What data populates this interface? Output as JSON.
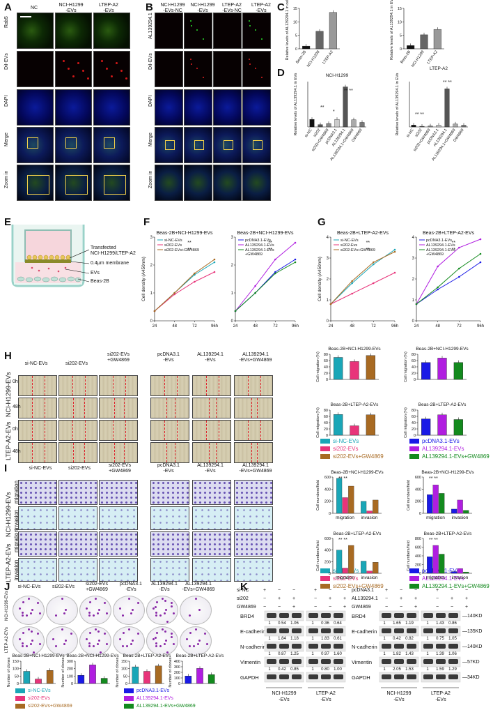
{
  "panels": {
    "A": "A",
    "B": "B",
    "C": "C",
    "D": "D",
    "E": "E",
    "F": "F",
    "G": "G",
    "H": "H",
    "I": "I",
    "J": "J",
    "K": "K"
  },
  "A": {
    "cols": [
      "NC",
      "NCI-H1299\n-EVs",
      "LTEP-A2\n-EVs"
    ],
    "rows": [
      "Rab5",
      "DiI-EVs",
      "DAPI",
      "Merge",
      "Zoom in"
    ]
  },
  "B": {
    "cols": [
      "NCI-H1299\n-EVs-NC",
      "NCI-H1299\n-EVs",
      "LTEP-A2\n-EVs-NC",
      "LTEP-A2\n-EVs"
    ],
    "rows": [
      "AL139294.1",
      "DiI-EVs",
      "DAPI",
      "Merge",
      "Zoom in"
    ]
  },
  "C": {
    "left": {
      "ylabel": "Relative levels of AL139294.1 in cells",
      "yticks": [
        "0",
        "5",
        "10",
        "15"
      ],
      "categories": [
        "Beas-2B",
        "NCI-H1299",
        "LTEP-A2"
      ]
    },
    "right": {
      "ylabel": "Relative levels of AL139294.1 in EVs",
      "yticks": [
        "0",
        "5",
        "10",
        "15"
      ],
      "categories": [
        "Beas-2B",
        "NCI-H1299",
        "LTEP-A2"
      ]
    }
  },
  "D": {
    "left": {
      "title": "NCI-H1299",
      "ylabel": "Relative levels of AL139294.1 in EVs",
      "yticks": [
        "0.0",
        "0.5",
        "1.0",
        "1.5",
        "4",
        "6"
      ],
      "categories": [
        "si-NC",
        "si202",
        "si202+GW4869",
        "pcDNA3.1",
        "AL139294.1",
        "AL139294.1+GW4869",
        "GW4869"
      ]
    },
    "right": {
      "title": "LTEP-A2",
      "ylabel": "Relative levels of AL139294.1 in EVs",
      "yticks": [
        "0.0",
        "0.5",
        "1.0",
        "1.5",
        "2",
        "20",
        "30"
      ],
      "categories": [
        "si-NC",
        "si202",
        "si202+GW4869",
        "pcDNA3.1",
        "AL139294.1",
        "AL139294.1+GW4869",
        "GW4869"
      ]
    }
  },
  "E": {
    "labels": [
      "Transfected\nNCI-H1299/LTEP-A2",
      "0.4μm membrane",
      "EVs",
      "Beas-2B"
    ]
  },
  "F": {
    "left": {
      "title": "Beas-2B+NCI-H1299-EVs",
      "ylabel": "Cell density (A450nm)",
      "yticks": [
        "0",
        "1",
        "2",
        "3"
      ],
      "xticks": [
        "24",
        "48",
        "72",
        "96h"
      ],
      "legend": [
        "si-NC-EVs",
        "si202-EVs",
        "si202-EVs+GW4869"
      ],
      "sig": [
        "**",
        "**"
      ]
    },
    "right": {
      "title": "Beas-2B+NCI-H1299-EVs",
      "yticks": [
        "0",
        "1",
        "2",
        "3"
      ],
      "xticks": [
        "24",
        "48",
        "72",
        "96h"
      ],
      "legend": [
        "pcDNA3.1-EVs",
        "AL139294.1-EVs",
        "AL139294.1-EVs\n+GW4869"
      ],
      "sig": [
        "**",
        "**"
      ]
    }
  },
  "G": {
    "left": {
      "title": "Beas-2B+LTEP-A2-EVs",
      "ylabel": "Cell density (A450nm)",
      "yticks": [
        "0",
        "1",
        "2",
        "3",
        "4"
      ],
      "xticks": [
        "24",
        "48",
        "72",
        "96h"
      ],
      "legend": [
        "si-NC-EVs",
        "si202-Evs",
        "si202-EVs+GW4869"
      ],
      "sig": [
        "**",
        "**"
      ]
    },
    "right": {
      "title": "Beas-2B+LTEP-A2-EVs",
      "yticks": [
        "0",
        "1",
        "2",
        "3",
        "4"
      ],
      "xticks": [
        "24",
        "48",
        "72",
        "96h"
      ],
      "legend": [
        "pcDNA3.1-EVs",
        "AL139294.1-EVs",
        "AL139294.1-EVs\n+GW4869"
      ],
      "sig": [
        "**",
        "**"
      ]
    }
  },
  "H": {
    "cols": [
      "si-NC-EVs",
      "si202-EVs",
      "si202-EVs\n+GW4869",
      "pcDNA3.1\n-EVs",
      "AL139294.1\n-EVs",
      "AL139294.1\n-EVs+GW4869"
    ],
    "groups": [
      "NCI-H1299-EVs",
      "LTEP-A2-EVs"
    ],
    "times": [
      "0h",
      "48h",
      "0h",
      "48h"
    ],
    "charts": [
      {
        "title": "Beas-2B+NCI-H1299-EVs",
        "ylabel": "Cell migration (%)",
        "yticks": [
          "0",
          "20",
          "40",
          "60",
          "80"
        ]
      },
      {
        "title": "Beas-2B+NCI-H1299-EVs",
        "ylabel": "Cell migration (%)",
        "yticks": [
          "0",
          "20",
          "40",
          "60",
          "80"
        ]
      },
      {
        "title": "Beas-2B+LTEP-A2-EVs",
        "ylabel": "Cell migration (%)",
        "yticks": [
          "0",
          "20",
          "40",
          "60",
          "80"
        ]
      },
      {
        "title": "Beas-2B+LTEP-A2-EVs",
        "ylabel": "Cell migration (%)",
        "yticks": [
          "0",
          "20",
          "40",
          "60",
          "80"
        ]
      }
    ],
    "legendL": [
      "si-NC-EVs",
      "si202-EVs",
      "si202-EVs+GW4869"
    ],
    "legendR": [
      "pcDNA3.1-EVs",
      "AL139294.1-EVs",
      "AL139294.1-EVs+GW4869"
    ]
  },
  "I": {
    "cols": [
      "si-NC-EVs",
      "si202-EVs",
      "si202-EVs\n+GW4869",
      "pcDNA3.1\n-EVs",
      "AL139294.1\n-EVs",
      "AL139294.1\n-EVs+GW4869"
    ],
    "groups": [
      "NCI-H1299-EVs",
      "LTEP-A2-EVs"
    ],
    "rows": [
      "migration",
      "invasion",
      "migration",
      "invasion"
    ],
    "charts": [
      {
        "title": "Beas-2B+NCI-H1299-EVs",
        "ylabel": "Cell numbers/field",
        "yticks": [
          "0",
          "200",
          "400",
          "600"
        ],
        "xcats": [
          "migration",
          "invasion"
        ]
      },
      {
        "title": "Beas-2B+NCI-H1299-EVs",
        "ylabel": "Cell numbers/field",
        "yticks": [
          "0",
          "200",
          "400",
          "600"
        ],
        "xcats": [
          "migration",
          "invasion"
        ]
      },
      {
        "title": "Beas-2B+LTEP-A2-EVs",
        "ylabel": "Cell numbers/field",
        "yticks": [
          "0",
          "200",
          "400",
          "600"
        ],
        "xcats": [
          "migration",
          "invasion"
        ]
      },
      {
        "title": "Beas-2B+LTEP-A2-EVs",
        "ylabel": "Cell numbers/field",
        "yticks": [
          "0",
          "200",
          "400",
          "600",
          "800"
        ],
        "xcats": [
          "migration",
          "invasion"
        ]
      }
    ],
    "legendL": [
      "si-NC-EVs",
      "si202-EVs",
      "si202-EVs+GW4869"
    ],
    "legendR": [
      "pcDNA3.1-EVs",
      "AL139294.1-EVs",
      "AL139294.1-EVs+GW4869"
    ]
  },
  "J": {
    "cols": [
      "si-NC-EVs",
      "si202-EVs",
      "si202-EVs\n+GW4869",
      "pcDNA3.1\n-EVs",
      "AL139294.1\n-EVs",
      "AL139294.1\n-EVs+GW4869"
    ],
    "rows": [
      "NCI-H1299-EVs",
      "LTEP-A2-EVs"
    ],
    "charts": [
      {
        "title": "Beas-2B+NCI-H1299-EVs",
        "ylabel": "Number of clones",
        "yticks": [
          "0",
          "50",
          "100",
          "150"
        ]
      },
      {
        "title": "Beas-2B+NCI-H1299-EVs",
        "ylabel": "Number of clones",
        "yticks": [
          "0",
          "100",
          "200",
          "300"
        ]
      },
      {
        "title": "Beas-2B+LTEP-A2-EVs",
        "ylabel": "Number of clones",
        "yticks": [
          "0",
          "50",
          "100",
          "150"
        ]
      },
      {
        "title": "Beas-2B+LTEP-A2-EVs",
        "ylabel": "Number of clones",
        "yticks": [
          "0",
          "100",
          "200",
          "300",
          "400"
        ]
      }
    ],
    "legendL": [
      "si-NC-EVs",
      "si202-EVs",
      "si202-EVs+GW4869"
    ],
    "legendR": [
      "pcDNA3.1-EVs",
      "AL139294.1-EVs",
      "AL139294.1-EVs+GW4869"
    ]
  },
  "K": {
    "left_header": [
      "si-NC",
      "si202",
      "GW4869"
    ],
    "right_header": [
      "pcDNA3.1",
      "AL139294.1",
      "GW4869"
    ],
    "proteins": [
      "BRD4",
      "E-cadherin",
      "N-cadherin",
      "Vimentin",
      "GAPDH"
    ],
    "kd": [
      "140KD",
      "135KD",
      "140KD",
      "57KD",
      "34KD"
    ],
    "left_values": [
      [
        "1",
        "0.54",
        "1.06",
        "1",
        "0.36",
        "0.64"
      ],
      [
        "1",
        "1.84",
        "1.18",
        "1",
        "1.83",
        "0.61"
      ],
      [
        "1",
        "0.87",
        "1.25",
        "1",
        "0.97",
        "1.60"
      ],
      [
        "1",
        "0.42",
        "0.85",
        "1",
        "0.80",
        "1.00"
      ]
    ],
    "right_values": [
      [
        "1",
        "1.65",
        "1.19",
        "1",
        "1.43",
        "0.86"
      ],
      [
        "1",
        "0.42",
        "0.82",
        "1",
        "0.75",
        "1.05"
      ],
      [
        "1",
        "1.82",
        "1.43",
        "1",
        "1.39",
        "1.06"
      ],
      [
        "1",
        "2.05",
        "1.53",
        "1",
        "1.59",
        "1.29"
      ]
    ],
    "groups": [
      "NCI-H1299\n-EVs",
      "LTEP-A2\n-EVs",
      "NCI-H1299\n-EVs",
      "LTEP-A2\n-EVs"
    ]
  },
  "colors": {
    "teal": "#1aa6b7",
    "pink": "#e8347a",
    "brown": "#a86a22",
    "blue": "#1a1ae6",
    "purple": "#b01ee0",
    "green": "#138a1e",
    "grey": "#8a8a8a"
  },
  "chart_data": [
    {
      "type": "bar",
      "panel": "C-left",
      "categories": [
        "Beas-2B",
        "NCI-H1299",
        "LTEP-A2"
      ],
      "values": [
        1,
        6.5,
        13.5
      ],
      "ylim": [
        0,
        15
      ]
    },
    {
      "type": "bar",
      "panel": "C-right",
      "categories": [
        "Beas-2B",
        "NCI-H1299",
        "LTEP-A2"
      ],
      "values": [
        1.2,
        5.2,
        7.2
      ],
      "ylim": [
        0,
        10
      ]
    },
    {
      "type": "bar",
      "panel": "D-left",
      "categories": [
        "si-NC",
        "si202",
        "si202+GW4869",
        "pcDNA3.1",
        "AL139294.1",
        "AL139294.1+GW4869",
        "GW4869"
      ],
      "values": [
        1,
        0.3,
        0.45,
        1,
        5.3,
        0.95,
        0.6
      ]
    },
    {
      "type": "bar",
      "panel": "D-right",
      "categories": [
        "si-NC",
        "si202",
        "si202+GW4869",
        "pcDNA3.1",
        "AL139294.1",
        "AL139294.1+GW4869",
        "GW4869"
      ],
      "values": [
        1,
        0.35,
        0.55,
        1,
        21,
        1.6,
        0.95
      ]
    },
    {
      "type": "line",
      "panel": "F-left",
      "x": [
        24,
        48,
        72,
        96
      ],
      "series": [
        {
          "name": "si-NC-EVs",
          "values": [
            0.35,
            1.0,
            1.65,
            2.1
          ]
        },
        {
          "name": "si202-EVs",
          "values": [
            0.35,
            0.95,
            1.4,
            1.75
          ]
        },
        {
          "name": "si202-EVs+GW4869",
          "values": [
            0.35,
            1.0,
            1.7,
            2.2
          ]
        }
      ],
      "ylim": [
        0,
        3
      ]
    },
    {
      "type": "line",
      "panel": "F-right",
      "x": [
        24,
        48,
        72,
        96
      ],
      "series": [
        {
          "name": "pcDNA3.1-EVs",
          "values": [
            0.35,
            1.0,
            1.75,
            2.2
          ]
        },
        {
          "name": "AL139294.1-EVs",
          "values": [
            0.35,
            1.25,
            2.2,
            2.8
          ]
        },
        {
          "name": "AL139294.1-EVs\n+GW4869",
          "values": [
            0.35,
            1.0,
            1.7,
            2.1
          ]
        }
      ],
      "ylim": [
        0,
        3
      ]
    },
    {
      "type": "line",
      "panel": "G-left",
      "x": [
        24,
        48,
        72,
        96
      ],
      "series": [
        {
          "name": "si-NC-EVs",
          "values": [
            0.8,
            1.8,
            2.7,
            3.4
          ]
        },
        {
          "name": "si202-Evs",
          "values": [
            0.8,
            1.3,
            1.8,
            2.3
          ]
        },
        {
          "name": "si202-EVs+GW4869",
          "values": [
            0.8,
            1.9,
            2.8,
            3.3
          ]
        }
      ],
      "ylim": [
        0,
        4
      ]
    },
    {
      "type": "line",
      "panel": "G-right",
      "x": [
        24,
        48,
        72,
        96
      ],
      "series": [
        {
          "name": "pcDNA3.1-EVs",
          "values": [
            0.8,
            1.5,
            2.1,
            2.8
          ]
        },
        {
          "name": "AL139294.1-EVs",
          "values": [
            0.8,
            2.6,
            3.5,
            3.9
          ]
        },
        {
          "name": "AL139294.1-EVs\n+GW4869",
          "values": [
            0.8,
            1.6,
            2.5,
            3.2
          ]
        }
      ],
      "ylim": [
        0,
        4
      ]
    },
    {
      "type": "bar",
      "panel": "H-1",
      "categories": [
        "si-NC-EVs",
        "si202-EVs",
        "si202-EVs+GW4869"
      ],
      "values": [
        70,
        57,
        76
      ],
      "ylim": [
        0,
        80
      ]
    },
    {
      "type": "bar",
      "panel": "H-2",
      "categories": [
        "pcDNA3.1-EVs",
        "AL139294.1-EVs",
        "AL139294.1-EVs+GW4869"
      ],
      "values": [
        54,
        68,
        54
      ],
      "ylim": [
        0,
        80
      ]
    },
    {
      "type": "bar",
      "panel": "H-3",
      "categories": [
        "si-NC-EVs",
        "si202-EVs",
        "si202-EVs+GW4869"
      ],
      "values": [
        66,
        30,
        65
      ],
      "ylim": [
        0,
        80
      ]
    },
    {
      "type": "bar",
      "panel": "H-4",
      "categories": [
        "pcDNA3.1-EVs",
        "AL139294.1-EVs",
        "AL139294.1-EVs+GW4869"
      ],
      "values": [
        52,
        65,
        50
      ],
      "ylim": [
        0,
        80
      ]
    },
    {
      "type": "bar",
      "panel": "I-1",
      "categories": [
        "migration",
        "invasion"
      ],
      "series": [
        {
          "name": "si-NC-EVs",
          "values": [
            580,
            200
          ]
        },
        {
          "name": "si202-EVs",
          "values": [
            260,
            40
          ]
        },
        {
          "name": "si202-EVs+GW4869",
          "values": [
            450,
            220
          ]
        }
      ],
      "ylim": [
        0,
        600
      ]
    },
    {
      "type": "bar",
      "panel": "I-2",
      "categories": [
        "migration",
        "invasion"
      ],
      "series": [
        {
          "name": "pcDNA3.1-EVs",
          "values": [
            310,
            70
          ]
        },
        {
          "name": "AL139294.1-EVs",
          "values": [
            470,
            220
          ]
        },
        {
          "name": "AL139294.1-EVs+GW4869",
          "values": [
            330,
            50
          ]
        }
      ],
      "ylim": [
        0,
        600
      ]
    },
    {
      "type": "bar",
      "panel": "I-3",
      "categories": [
        "migration",
        "invasion"
      ],
      "series": [
        {
          "name": "si-NC-EVs",
          "values": [
            400,
            210
          ]
        },
        {
          "name": "si202-EVs",
          "values": [
            90,
            40
          ]
        },
        {
          "name": "si202-EVs+GW4869",
          "values": [
            480,
            190
          ]
        }
      ],
      "ylim": [
        0,
        600
      ]
    },
    {
      "type": "bar",
      "panel": "I-4",
      "categories": [
        "migration",
        "invasion"
      ],
      "series": [
        {
          "name": "pcDNA3.1-EVs",
          "values": [
            380,
            40
          ]
        },
        {
          "name": "AL139294.1-EVs",
          "values": [
            640,
            110
          ]
        },
        {
          "name": "AL139294.1-EVs+GW4869",
          "values": [
            440,
            30
          ]
        }
      ],
      "ylim": [
        0,
        800
      ]
    },
    {
      "type": "bar",
      "panel": "J-1",
      "categories": [
        "si-NC-EVs",
        "si202-EVs",
        "si202-EVs+GW4869"
      ],
      "values": [
        82,
        30,
        88
      ],
      "ylim": [
        0,
        150
      ]
    },
    {
      "type": "bar",
      "panel": "J-2",
      "categories": [
        "pcDNA3.1-EVs",
        "AL139294.1-EVs",
        "AL139294.1-EVs+GW4869"
      ],
      "values": [
        110,
        250,
        70
      ],
      "ylim": [
        0,
        300
      ]
    },
    {
      "type": "bar",
      "panel": "J-3",
      "categories": [
        "si-NC-EVs",
        "si202-EVs",
        "si202-EVs+GW4869"
      ],
      "values": [
        112,
        82,
        118
      ],
      "ylim": [
        0,
        150
      ]
    },
    {
      "type": "bar",
      "panel": "J-4",
      "categories": [
        "pcDNA3.1-EVs",
        "AL139294.1-EVs",
        "AL139294.1-EVs+GW4869"
      ],
      "values": [
        135,
        270,
        160
      ],
      "ylim": [
        0,
        400
      ]
    }
  ]
}
